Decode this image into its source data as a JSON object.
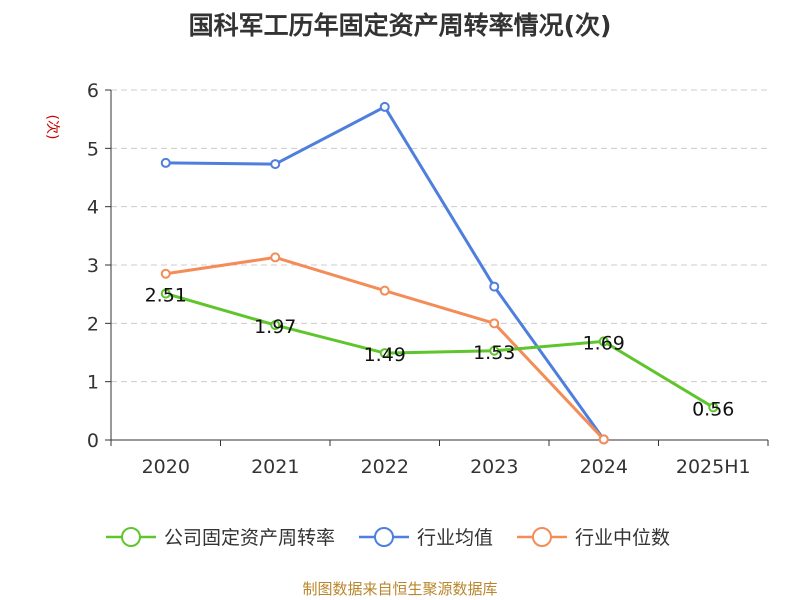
{
  "chart_data": {
    "type": "line",
    "title": "国科军工历年固定资产周转率情况(次)",
    "ylabel": "(次)",
    "xlabel": "",
    "categories": [
      "2020",
      "2021",
      "2022",
      "2023",
      "2024",
      "2025H1"
    ],
    "ylim": [
      0,
      6
    ],
    "yticks": [
      0,
      1,
      2,
      3,
      4,
      5,
      6
    ],
    "grid": true,
    "legend_position": "bottom",
    "series": [
      {
        "name": "公司固定资产周转率",
        "color": "#5fc52c",
        "values": [
          2.51,
          1.97,
          1.49,
          1.53,
          1.69,
          0.56
        ],
        "labels": [
          "2.51",
          "1.97",
          "1.49",
          "1.53",
          "1.69",
          "0.56"
        ]
      },
      {
        "name": "行业均值",
        "color": "#4e7fdc",
        "values": [
          4.75,
          4.73,
          5.71,
          2.63,
          0.01,
          null
        ]
      },
      {
        "name": "行业中位数",
        "color": "#f48c57",
        "values": [
          2.85,
          3.13,
          2.56,
          2.0,
          0.01,
          null
        ]
      }
    ],
    "source": "制图数据来自恒生聚源数据库"
  }
}
